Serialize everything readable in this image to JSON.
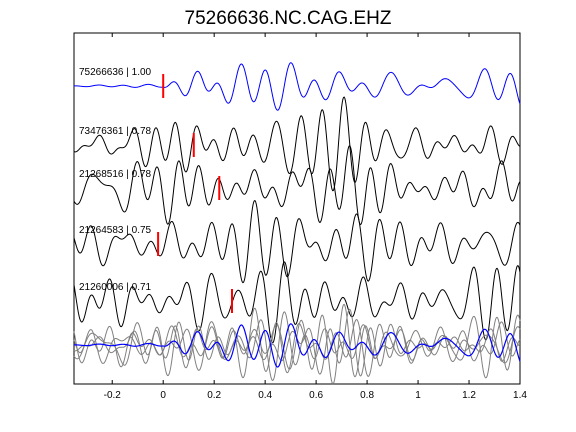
{
  "chart_data": {
    "type": "line",
    "title": "75266636.NC.CAG.EHZ",
    "xlabel": "",
    "ylabel": "",
    "xlim": [
      -0.35,
      1.4
    ],
    "x_ticks": [
      -0.2,
      0,
      0.2,
      0.4,
      0.6,
      0.8,
      1,
      1.2,
      1.4
    ],
    "x_tick_labels": [
      "-0.2",
      "0",
      "0.2",
      "0.4",
      "0.6",
      "0.8",
      "1",
      "1.2",
      "1.4"
    ],
    "grid": false,
    "series": [
      {
        "name": "75266636 | 1.00",
        "color": "#0000ff",
        "pick_time": 0.0
      },
      {
        "name": "73476361 | 0.78",
        "color": "#000000",
        "pick_time": 0.12
      },
      {
        "name": "21268516 | 0.78",
        "color": "#000000",
        "pick_time": 0.22
      },
      {
        "name": "21264583 | 0.75",
        "color": "#000000",
        "pick_time": -0.02
      },
      {
        "name": "21260006 | 0.71",
        "color": "#000000",
        "pick_time": 0.27
      }
    ],
    "stack": {
      "traces_color": "#808080",
      "reference_color": "#0000ff"
    },
    "pick_color": "#ff0000"
  }
}
